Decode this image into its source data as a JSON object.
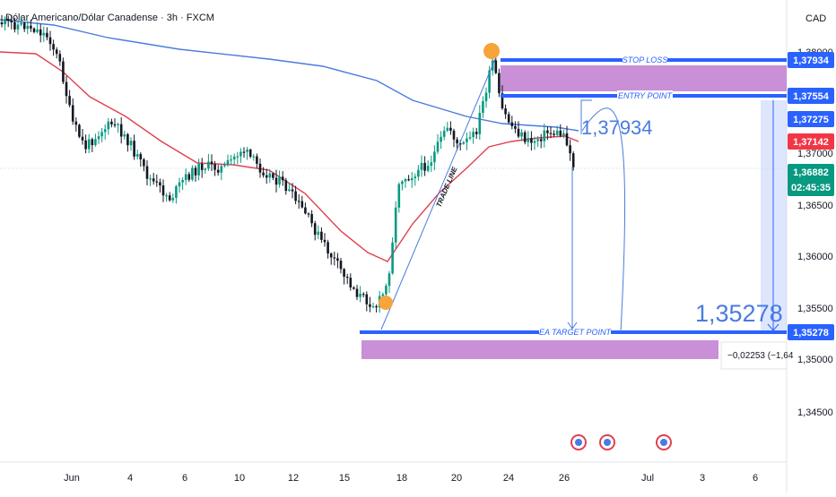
{
  "header": {
    "symbol_title": "Dólar Americano/Dólar Canadense · 3h · FXCM",
    "currency": "CAD"
  },
  "chart_data": {
    "type": "candlestick",
    "title": "Dólar Americano/Dólar Canadense · 3h · FXCM",
    "y_axis": {
      "ticks": [
        "1,38000",
        "1,37000",
        "1,36500",
        "1,36000",
        "1,35500",
        "1,35000",
        "1,34500"
      ],
      "ylim": [
        1.342,
        1.3838
      ]
    },
    "x_axis": {
      "ticks": [
        "Jun",
        "4",
        "6",
        "10",
        "12",
        "15",
        "18",
        "20",
        "24",
        "26",
        "Jul",
        "3",
        "6"
      ]
    },
    "price_tags": [
      {
        "label": "1,37934",
        "color": "#2962ff"
      },
      {
        "label": "1,37554",
        "color": "#2962ff"
      },
      {
        "label": "1,37275",
        "color": "#2962ff"
      },
      {
        "label": "1,37142",
        "color": "#f23645"
      },
      {
        "label": "1,36882",
        "sub": "02:45:35",
        "color": "#089981"
      },
      {
        "label": "1,35278",
        "color": "#2962ff"
      }
    ],
    "annotations": {
      "stop_loss": {
        "label": "STOP LOSS",
        "price": 1.37934
      },
      "entry_point": {
        "label": "ENTRY POINT",
        "price": 1.37554
      },
      "target_point": {
        "label": "EA TARGET POINT",
        "price": 1.35278
      },
      "trade_line": {
        "label": "TRADE LINE"
      },
      "big_label_entry": "1,37934",
      "big_label_target": "1,35278",
      "measure": "−0,02253 (−1,64"
    },
    "series": [
      {
        "name": "",
        "type": "moving-average",
        "color": "#e04050"
      },
      {
        "name": "",
        "type": "moving-average",
        "color": "#4a7be0"
      }
    ],
    "colors": {
      "up": "#089981",
      "down": "#131722",
      "zone": "#c990d8",
      "accent": "#2962ff"
    }
  }
}
